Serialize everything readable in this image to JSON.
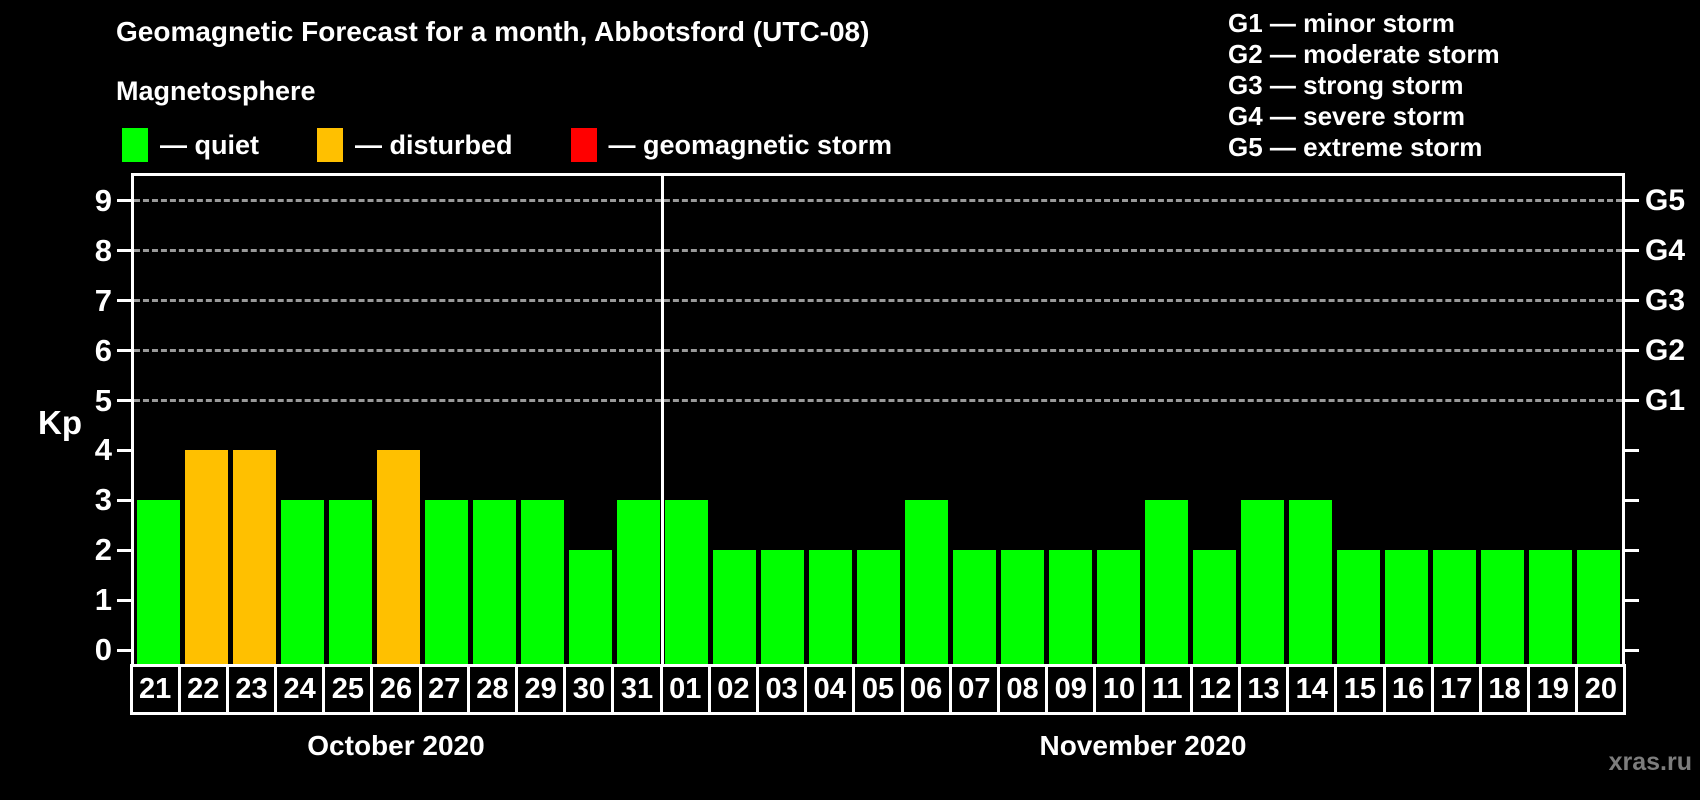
{
  "title": "Geomagnetic Forecast for a month, Abbotsford (UTC-08)",
  "subtitle": "Magnetosphere",
  "legend": {
    "items": [
      {
        "text": "— quiet",
        "status": "quiet",
        "color": "#00ff00"
      },
      {
        "text": "— disturbed",
        "status": "disturbed",
        "color": "#ffc000"
      },
      {
        "text": "— geomagnetic storm",
        "status": "storm",
        "color": "#ff0000"
      }
    ]
  },
  "g_legend": [
    {
      "text": "G1 — minor storm"
    },
    {
      "text": "G2 — moderate storm"
    },
    {
      "text": "G3 — strong storm"
    },
    {
      "text": "G4 — severe storm"
    },
    {
      "text": "G5 — extreme storm"
    }
  ],
  "axes": {
    "y_label": "Kp",
    "y_ticks": [
      0,
      1,
      2,
      3,
      4,
      5,
      6,
      7,
      8,
      9
    ],
    "y_tick_labels": [
      "0",
      "1",
      "2",
      "3",
      "4",
      "5",
      "6",
      "7",
      "8",
      "9"
    ],
    "right_labels": [
      {
        "kp": 5,
        "label": "G1"
      },
      {
        "kp": 6,
        "label": "G2"
      },
      {
        "kp": 7,
        "label": "G3"
      },
      {
        "kp": 8,
        "label": "G4"
      },
      {
        "kp": 9,
        "label": "G5"
      }
    ],
    "gridlines_at": [
      5,
      6,
      7,
      8,
      9
    ]
  },
  "months": [
    {
      "label": "October 2020",
      "start_index": 0,
      "count": 11
    },
    {
      "label": "November 2020",
      "start_index": 11,
      "count": 20
    }
  ],
  "chart_data": {
    "type": "bar",
    "title": "Geomagnetic Forecast for a month, Abbotsford (UTC-08)",
    "xlabel": "",
    "ylabel": "Kp",
    "ylim": [
      0,
      9.6
    ],
    "grid": "dashed horizontal at Kp 5-9 only",
    "legend_position": "top-left and top-right",
    "categories": [
      "21",
      "22",
      "23",
      "24",
      "25",
      "26",
      "27",
      "28",
      "29",
      "30",
      "31",
      "01",
      "02",
      "03",
      "04",
      "05",
      "06",
      "07",
      "08",
      "09",
      "10",
      "11",
      "12",
      "13",
      "14",
      "15",
      "16",
      "17",
      "18",
      "19",
      "20"
    ],
    "values": [
      3,
      4,
      4,
      3,
      3,
      4,
      3,
      3,
      3,
      2,
      3,
      3,
      2,
      2,
      2,
      2,
      3,
      2,
      2,
      2,
      2,
      3,
      2,
      3,
      3,
      2,
      2,
      2,
      2,
      2,
      2
    ],
    "statuses": [
      "quiet",
      "disturbed",
      "disturbed",
      "quiet",
      "quiet",
      "disturbed",
      "quiet",
      "quiet",
      "quiet",
      "quiet",
      "quiet",
      "quiet",
      "quiet",
      "quiet",
      "quiet",
      "quiet",
      "quiet",
      "quiet",
      "quiet",
      "quiet",
      "quiet",
      "quiet",
      "quiet",
      "quiet",
      "quiet",
      "quiet",
      "quiet",
      "quiet",
      "quiet",
      "quiet",
      "quiet"
    ]
  },
  "status_colors": {
    "quiet": "#00ff00",
    "disturbed": "#ffc000",
    "storm": "#ff0000"
  },
  "watermark": "xras.ru"
}
